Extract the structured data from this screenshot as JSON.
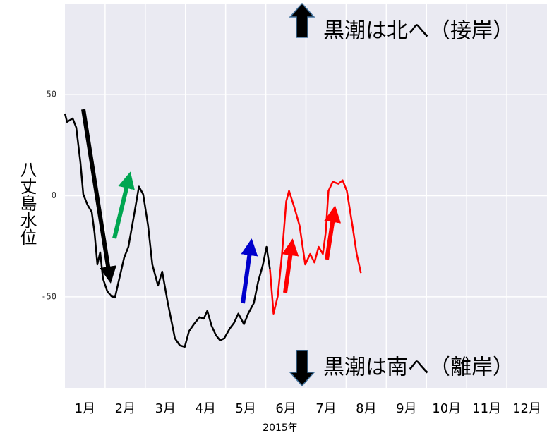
{
  "chart_data": {
    "type": "line",
    "ylabel": "八丈島水位",
    "xlabel": "2015年",
    "annotations": [
      "黒潮は北へ（接岸）",
      "黒潮は南へ（離岸）"
    ],
    "categories": [
      "1月",
      "2月",
      "3月",
      "4月",
      "5月",
      "6月",
      "7月",
      "8月",
      "9月",
      "10月",
      "11月",
      "12月"
    ],
    "xlim": [
      0,
      12
    ],
    "ylim": [
      -95,
      95
    ],
    "yticks": [
      -50,
      0,
      50
    ],
    "grid": true,
    "series": [
      {
        "color": "#000000",
        "x": [
          0,
          0.053,
          0.193,
          0.281,
          0.386,
          0.456,
          0.561,
          0.667,
          0.737,
          0.807,
          0.877,
          0.947,
          1.053,
          1.158,
          1.246,
          1.333,
          1.474,
          1.579,
          1.719,
          1.842,
          1.947,
          2.07,
          2.175,
          2.316,
          2.421,
          2.561,
          2.667,
          2.737,
          2.86,
          2.982,
          3.088,
          3.211,
          3.351,
          3.456,
          3.544,
          3.649,
          3.754,
          3.86,
          3.965,
          4.105,
          4.211,
          4.316,
          4.456,
          4.561,
          4.702,
          4.807,
          4.93,
          5.018,
          5.105
        ],
        "values": [
          40.6,
          36.5,
          38.2,
          33.7,
          16.3,
          0.7,
          -4.5,
          -8,
          -18.4,
          -34,
          -28,
          -41,
          -47.2,
          -49.7,
          -50.3,
          -42.7,
          -30.6,
          -25.3,
          -9.7,
          4.5,
          0.7,
          -14.9,
          -34,
          -44.4,
          -37.5,
          -53.1,
          -63.5,
          -70.5,
          -74,
          -74.7,
          -67,
          -63.5,
          -60,
          -60.8,
          -56.9,
          -64.2,
          -68.8,
          -71.5,
          -70.5,
          -65.6,
          -62.8,
          -58.3,
          -63.5,
          -58.3,
          -53.1,
          -42.7,
          -34,
          -25.3,
          -36.5
        ]
      },
      {
        "color": "#ff0000",
        "x": [
          5.105,
          5.193,
          5.298,
          5.404,
          5.509,
          5.579,
          5.719,
          5.842,
          5.982,
          6.105,
          6.211,
          6.316,
          6.421,
          6.491,
          6.561,
          6.667,
          6.807,
          6.912,
          7.018,
          7.158,
          7.263,
          7.368
        ],
        "values": [
          -36.5,
          -58.3,
          -49.7,
          -28.8,
          -2.8,
          2.4,
          -6.3,
          -14.9,
          -34,
          -28.8,
          -33,
          -25.3,
          -28.8,
          -18.4,
          2.4,
          6.9,
          5.9,
          7.6,
          2.4,
          -14.9,
          -28.8,
          -38.2
        ]
      }
    ]
  }
}
